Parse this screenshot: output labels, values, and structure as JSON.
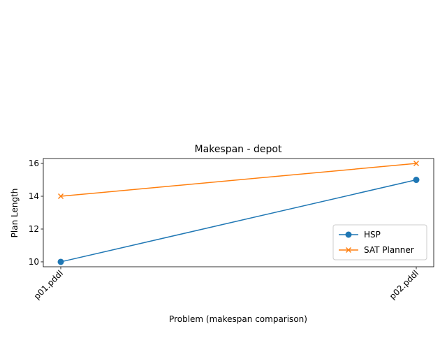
{
  "chart_data": {
    "type": "line",
    "title": "Makespan - depot",
    "xlabel": "Problem (makespan comparison)",
    "ylabel": "Plan Length",
    "categories": [
      "p01.pddl",
      "p02.pddl"
    ],
    "ylim": [
      9.7,
      16.3
    ],
    "yticks": [
      10,
      12,
      14,
      16
    ],
    "grid": false,
    "legend_position": "lower right",
    "series": [
      {
        "name": "HSP",
        "values": [
          10,
          15
        ],
        "color": "#1f77b4",
        "marker": "circle"
      },
      {
        "name": "SAT Planner",
        "values": [
          14,
          16
        ],
        "color": "#ff7f0e",
        "marker": "x"
      }
    ]
  }
}
